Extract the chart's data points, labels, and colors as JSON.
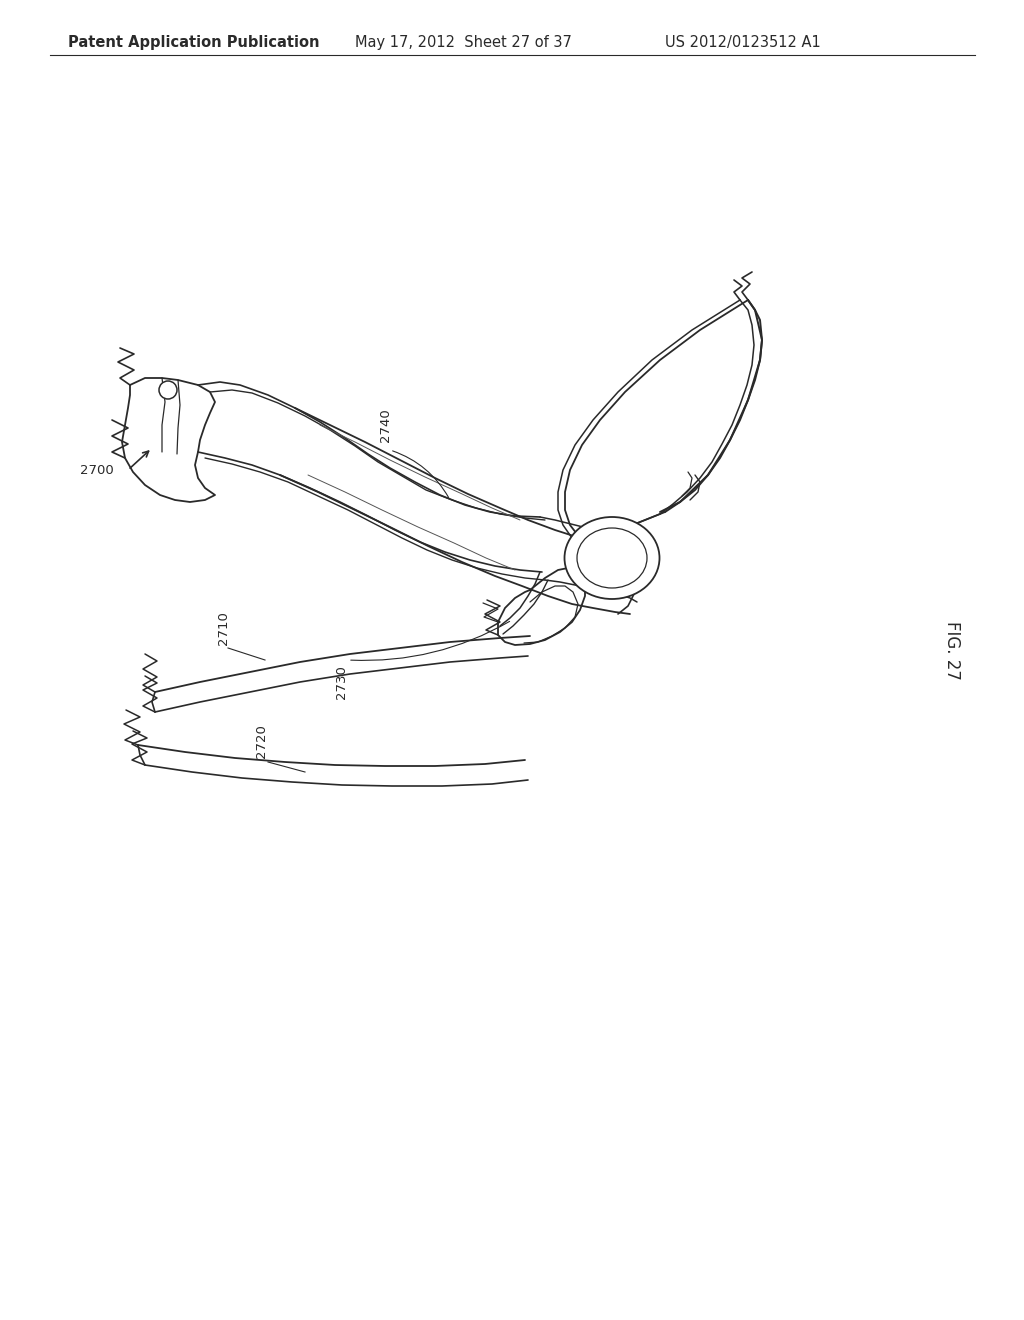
{
  "header_left": "Patent Application Publication",
  "header_center": "May 17, 2012  Sheet 27 of 37",
  "header_right": "US 2012/0123512 A1",
  "fig_label": "FIG. 27",
  "background_color": "#ffffff",
  "line_color": "#2a2a2a",
  "header_font_size": 10.5,
  "fig_label_font_size": 12
}
